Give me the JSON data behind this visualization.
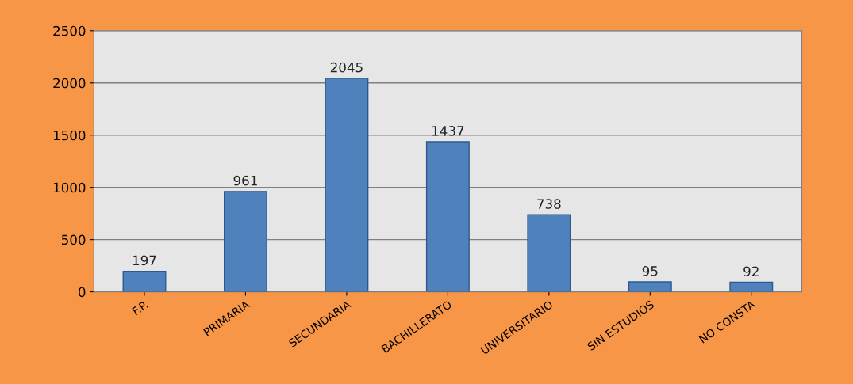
{
  "chart_data": {
    "type": "bar",
    "categories": [
      "F.P.",
      "PRIMARIA",
      "SECUNDARIA",
      "BACHILLERATO",
      "UNIVERSITARIO",
      "SIN ESTUDIOS",
      "NO CONSTA"
    ],
    "values": [
      197,
      961,
      2045,
      1437,
      738,
      95,
      92
    ],
    "color": "#4f81bd",
    "ylim": [
      0,
      2500
    ],
    "yticks": [
      0,
      500,
      1000,
      1500,
      2000,
      2500
    ],
    "grid": "y",
    "data_labels": true
  }
}
